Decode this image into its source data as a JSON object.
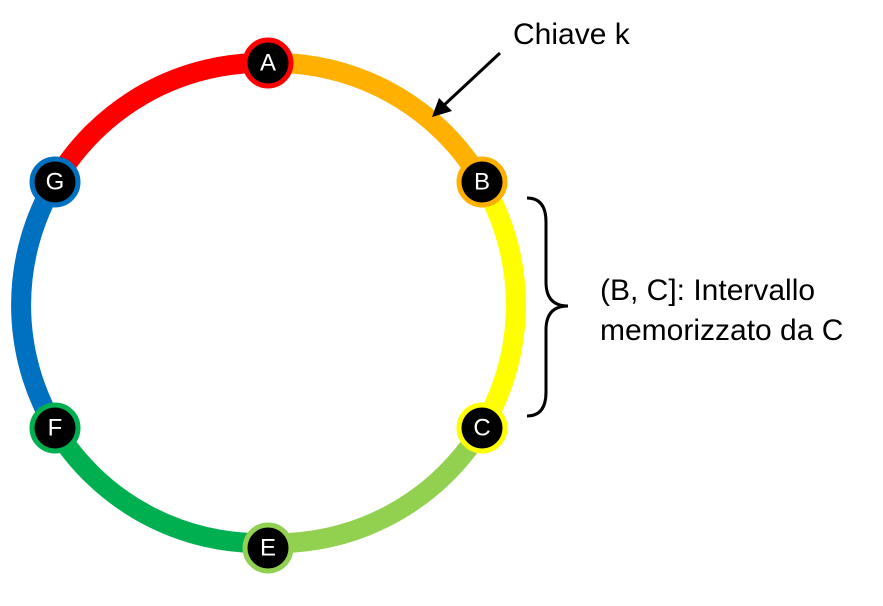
{
  "diagram": {
    "nodes": [
      {
        "id": "A",
        "label": "A",
        "ring_color": "#FF0000"
      },
      {
        "id": "B",
        "label": "B",
        "ring_color": "#FFB000"
      },
      {
        "id": "C",
        "label": "C",
        "ring_color": "#FFFF00"
      },
      {
        "id": "E",
        "label": "E",
        "ring_color": "#92D050"
      },
      {
        "id": "F",
        "label": "F",
        "ring_color": "#00B050"
      },
      {
        "id": "G",
        "label": "G",
        "ring_color": "#0070C0"
      }
    ],
    "arcs": [
      {
        "from": "A",
        "to": "B",
        "color": "#FFB000"
      },
      {
        "from": "B",
        "to": "C",
        "color": "#FFFF00"
      },
      {
        "from": "C",
        "to": "E",
        "color": "#92D050"
      },
      {
        "from": "E",
        "to": "F",
        "color": "#00B050"
      },
      {
        "from": "F",
        "to": "G",
        "color": "#0070C0"
      },
      {
        "from": "G",
        "to": "A",
        "color": "#FF0000"
      }
    ],
    "key_label": "Chiave k",
    "interval_line1": "(B, C]: Intervallo",
    "interval_line2": "memorizzato da C"
  }
}
